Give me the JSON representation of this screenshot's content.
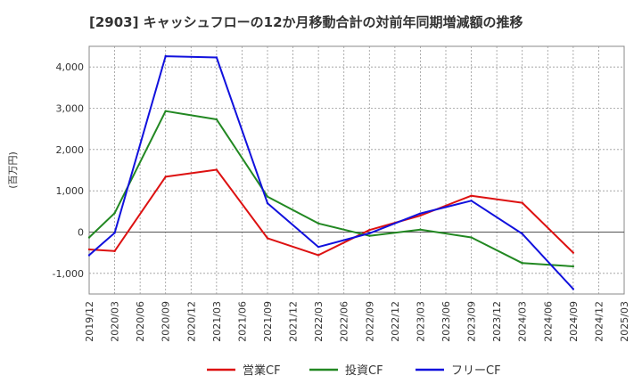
{
  "chart_data": {
    "type": "line",
    "title": "[2903]  キャッシュフローの12か月移動合計の対前年同期増減額の推移",
    "xlabel": "",
    "ylabel": "(百万円)",
    "ylim": [
      -1500,
      4500
    ],
    "yticks": [
      -1000,
      0,
      1000,
      2000,
      3000,
      4000
    ],
    "ytick_labels": [
      "-1,000",
      "0",
      "1,000",
      "2,000",
      "3,000",
      "4,000"
    ],
    "categories": [
      "2019/12",
      "2020/03",
      "2020/06",
      "2020/09",
      "2020/12",
      "2021/03",
      "2021/06",
      "2021/09",
      "2021/12",
      "2022/03",
      "2022/06",
      "2022/09",
      "2022/12",
      "2023/03",
      "2023/06",
      "2023/09",
      "2023/12",
      "2024/03",
      "2024/06",
      "2024/09",
      "2024/12",
      "2025/03"
    ],
    "grid": true,
    "legend_position": "bottom",
    "series": [
      {
        "name": "営業CF",
        "color": "#dd1111",
        "values": [
          -420,
          -460,
          null,
          1340,
          null,
          1510,
          null,
          -150,
          null,
          -560,
          null,
          50,
          null,
          400,
          null,
          880,
          null,
          710,
          null,
          -500,
          null,
          null
        ]
      },
      {
        "name": "投資CF",
        "color": "#228822",
        "values": [
          -130,
          460,
          null,
          2930,
          null,
          2730,
          null,
          860,
          null,
          210,
          null,
          -90,
          null,
          60,
          null,
          -130,
          null,
          -750,
          null,
          -830,
          null,
          null
        ]
      },
      {
        "name": "フリーCF",
        "color": "#1111dd",
        "values": [
          -560,
          -20,
          null,
          4260,
          null,
          4230,
          null,
          700,
          null,
          -360,
          null,
          -30,
          null,
          450,
          null,
          760,
          null,
          -40,
          null,
          -1380,
          null,
          null
        ]
      }
    ]
  }
}
